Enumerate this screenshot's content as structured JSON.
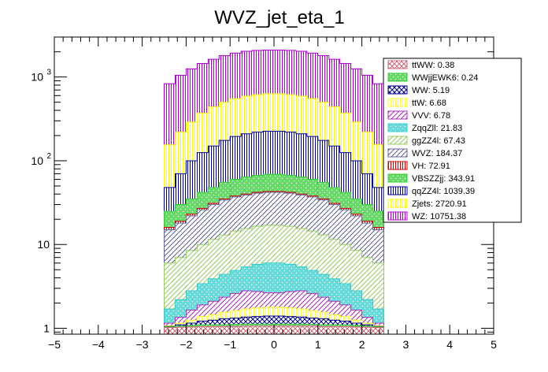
{
  "chart_data": {
    "type": "bar",
    "stacked": true,
    "title": "WVZ_jet_eta_1",
    "xlabel": "",
    "ylabel": "",
    "xlim": [
      -5,
      5
    ],
    "ylim": [
      0.85,
      3000
    ],
    "yscale": "log",
    "grid": false,
    "legend_position": "top-right",
    "x_ticks": [
      "−5",
      "−4",
      "−3",
      "−2",
      "−1",
      "0",
      "1",
      "2",
      "3",
      "4",
      "5"
    ],
    "y_ticks": [
      {
        "value": 1,
        "label": "1"
      },
      {
        "value": 10,
        "label": "10"
      },
      {
        "value": 100,
        "label": "10",
        "exp": "2"
      },
      {
        "value": 1000,
        "label": "10",
        "exp": "3"
      }
    ],
    "bin_edges": [
      -2.5,
      -2.25,
      -2.0,
      -1.75,
      -1.5,
      -1.25,
      -1.0,
      -0.75,
      -0.5,
      -0.25,
      0.0,
      0.25,
      0.5,
      0.75,
      1.0,
      1.25,
      1.5,
      1.75,
      2.0,
      2.25,
      2.5
    ],
    "stack_totals": [
      {
        "name": "ttWW",
        "label": "ttWW: 0.38",
        "color": "#cc6677",
        "pattern": "cross",
        "values": [
          1.02,
          1.03,
          1.04,
          1.05,
          1.05,
          1.05,
          1.05,
          1.06,
          1.06,
          1.06,
          1.06,
          1.06,
          1.06,
          1.06,
          1.05,
          1.05,
          1.05,
          1.04,
          1.03,
          1.02
        ]
      },
      {
        "name": "WWjjEWK6",
        "label": "WWjjEWK6: 0.24",
        "color": "#33cc33",
        "pattern": "dots",
        "values": [
          1.04,
          1.06,
          1.08,
          1.1,
          1.1,
          1.1,
          1.11,
          1.12,
          1.12,
          1.12,
          1.12,
          1.12,
          1.12,
          1.11,
          1.1,
          1.1,
          1.1,
          1.08,
          1.06,
          1.04
        ]
      },
      {
        "name": "WW",
        "label": "WW: 5.19",
        "color": "#000088",
        "pattern": "cross",
        "values": [
          1.05,
          1.1,
          1.15,
          1.22,
          1.25,
          1.3,
          1.32,
          1.36,
          1.38,
          1.4,
          1.4,
          1.38,
          1.36,
          1.32,
          1.3,
          1.25,
          1.22,
          1.15,
          1.1,
          1.05
        ]
      },
      {
        "name": "ttW",
        "label": "ttW: 6.68",
        "color": "#ffff33",
        "pattern": "vert",
        "values": [
          1.07,
          1.15,
          1.25,
          1.38,
          1.45,
          1.55,
          1.62,
          1.7,
          1.75,
          1.78,
          1.78,
          1.75,
          1.7,
          1.62,
          1.55,
          1.45,
          1.38,
          1.25,
          1.15,
          1.07
        ]
      },
      {
        "name": "VVV",
        "label": "VVV: 6.78",
        "color": "#aa33bb",
        "pattern": "diag",
        "values": [
          1.15,
          1.35,
          1.65,
          1.9,
          2.1,
          2.35,
          2.6,
          2.8,
          2.75,
          2.65,
          2.65,
          2.75,
          2.8,
          2.6,
          2.35,
          2.1,
          1.9,
          1.65,
          1.35,
          1.15
        ]
      },
      {
        "name": "ZqqZll",
        "label": "ZqqZll: 21.83",
        "color": "#33cccc",
        "pattern": "dots",
        "values": [
          1.7,
          2.2,
          2.8,
          3.4,
          3.9,
          4.4,
          4.9,
          5.4,
          5.8,
          6.0,
          6.0,
          5.8,
          5.4,
          4.9,
          4.4,
          3.9,
          3.4,
          2.8,
          2.2,
          1.7
        ]
      },
      {
        "name": "ggZZ4l",
        "label": "ggZZ4l: 67.43",
        "color": "#99cc66",
        "pattern": "diag",
        "values": [
          6.0,
          7.0,
          8.5,
          10.0,
          11.5,
          13.0,
          14.5,
          15.5,
          16.5,
          17.0,
          17.0,
          16.5,
          15.5,
          14.5,
          13.0,
          11.5,
          10.0,
          8.5,
          7.0,
          6.0
        ]
      },
      {
        "name": "WVZ",
        "label": "WVZ: 184.37",
        "color": "#666699",
        "pattern": "diag",
        "values": [
          15,
          18,
          22,
          26,
          30,
          34,
          37,
          39,
          41,
          42,
          42,
          41,
          39,
          37,
          34,
          30,
          26,
          22,
          18,
          15
        ]
      },
      {
        "name": "VH",
        "label": "VH: 72.91",
        "color": "#cc0000",
        "pattern": "vert",
        "values": [
          16,
          19,
          23,
          27,
          31,
          35,
          38,
          40,
          42,
          43,
          43,
          42,
          40,
          38,
          35,
          31,
          27,
          23,
          19,
          16
        ]
      },
      {
        "name": "VBSZZjj",
        "label": "VBSZZjj: 343.91",
        "color": "#33cc33",
        "pattern": "dots",
        "values": [
          25,
          30,
          35,
          42,
          48,
          55,
          60,
          64,
          67,
          69,
          69,
          67,
          64,
          60,
          55,
          48,
          42,
          35,
          30,
          25
        ]
      },
      {
        "name": "qqZZ4l",
        "label": "qqZZ4l: 1039.39",
        "color": "#000099",
        "pattern": "vert",
        "values": [
          48,
          70,
          100,
          125,
          150,
          175,
          195,
          210,
          220,
          225,
          225,
          220,
          210,
          195,
          175,
          150,
          125,
          100,
          70,
          48
        ]
      },
      {
        "name": "Zjets",
        "label": "Zjets: 2720.91",
        "color": "#ffff00",
        "pattern": "vert",
        "values": [
          155,
          220,
          290,
          370,
          440,
          500,
          550,
          590,
          615,
          630,
          630,
          615,
          590,
          550,
          500,
          440,
          370,
          290,
          220,
          155
        ]
      },
      {
        "name": "WZ",
        "label": "WZ: 10751.38",
        "color": "#aa00cc",
        "pattern": "vert",
        "values": [
          830,
          1050,
          1250,
          1450,
          1630,
          1800,
          1930,
          2030,
          2080,
          2100,
          2100,
          2080,
          2030,
          1930,
          1800,
          1630,
          1450,
          1250,
          1050,
          830
        ]
      }
    ]
  }
}
